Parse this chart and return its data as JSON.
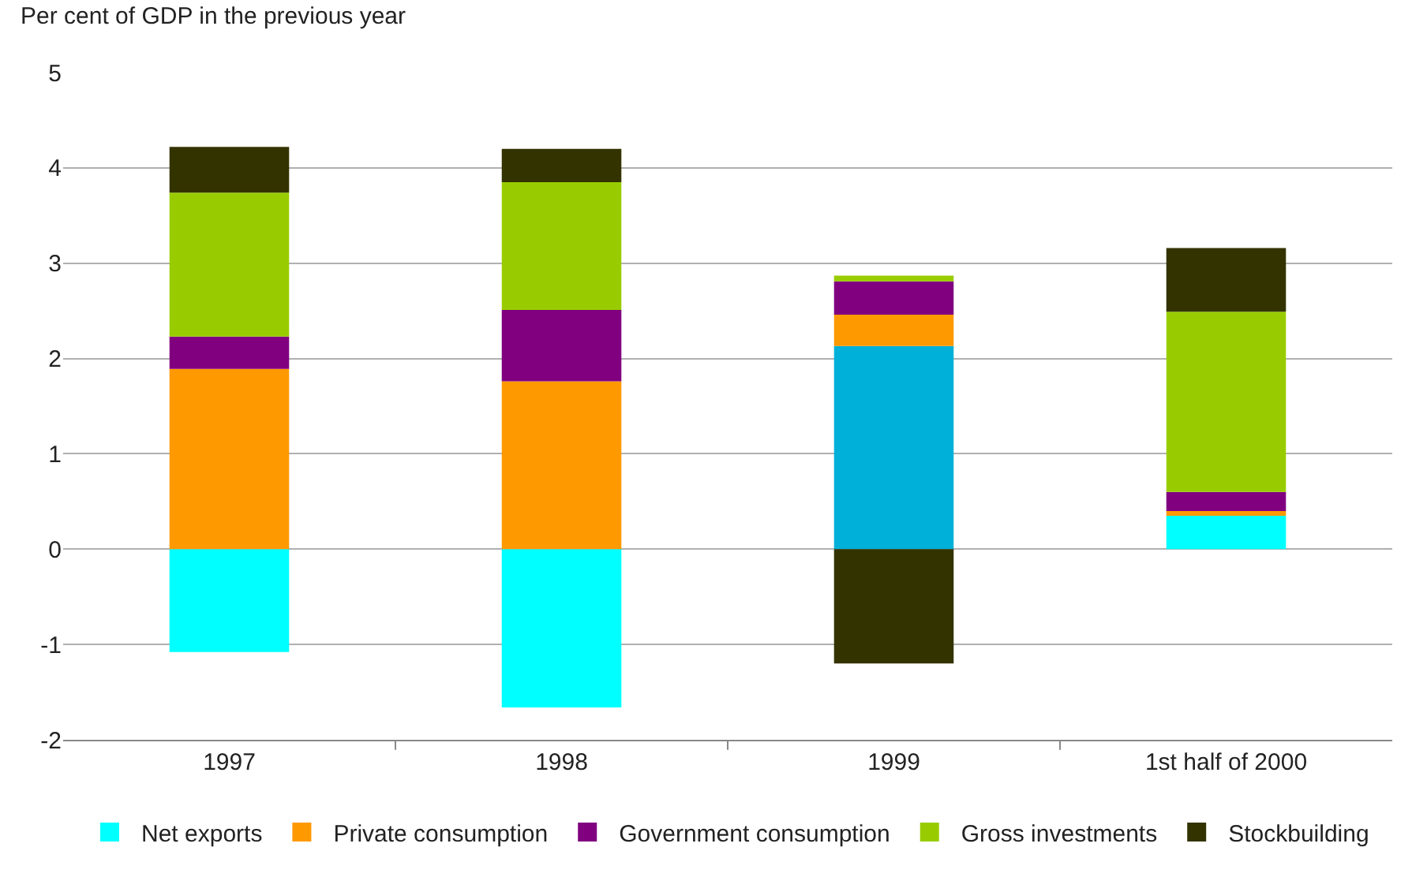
{
  "chart_data": {
    "type": "bar",
    "stacked": true,
    "ylabel": "Per cent of GDP in the previous year",
    "categories": [
      "1997",
      "1998",
      "1999",
      "1st half of 2000"
    ],
    "series": [
      {
        "name": "Net exports",
        "color": "#00ffff",
        "colors": [
          "#00ffff",
          "#00ffff",
          "#00b0d8",
          "#00ffff"
        ],
        "values": [
          -1.08,
          -1.66,
          2.13,
          0.35
        ]
      },
      {
        "name": "Private consumption",
        "color": "#ff9900",
        "values": [
          1.89,
          1.76,
          0.33,
          0.05
        ]
      },
      {
        "name": "Government consumption",
        "color": "#800080",
        "values": [
          0.34,
          0.75,
          0.35,
          0.2
        ]
      },
      {
        "name": "Gross investments",
        "color": "#99cc00",
        "values": [
          1.51,
          1.34,
          0.06,
          1.89
        ]
      },
      {
        "name": "Stockbuilding",
        "color": "#333300",
        "values": [
          0.48,
          0.35,
          -1.2,
          0.67
        ]
      }
    ],
    "ylim": [
      -2,
      5
    ],
    "yticks": [
      -2,
      -1,
      0,
      1,
      2,
      3,
      4,
      5
    ],
    "grid": "y",
    "legend": "bottom"
  }
}
